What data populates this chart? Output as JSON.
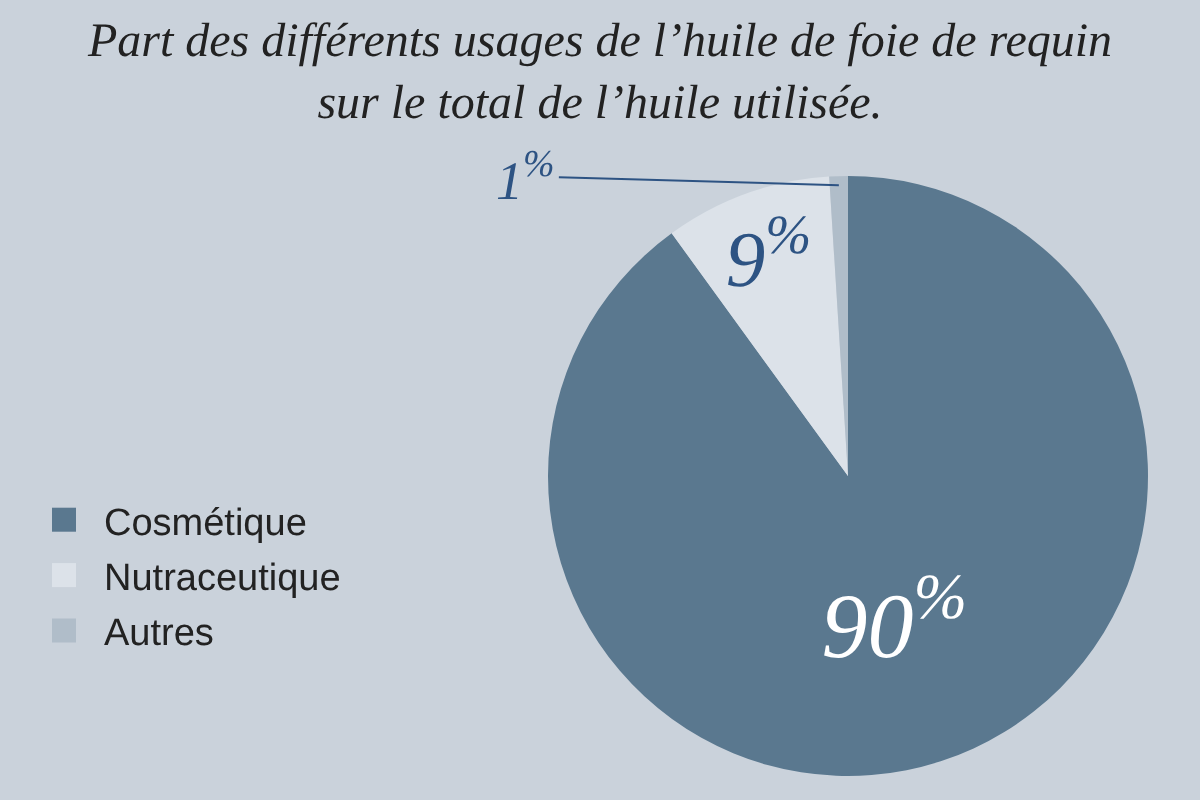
{
  "chart_data": {
    "type": "pie",
    "title": "Part des différents usages de l’huile de foie de requin sur le total de l’huile utilisée.",
    "categories": [
      "Cosmétique",
      "Nutraceutique",
      "Autres"
    ],
    "values": [
      90,
      9,
      1
    ],
    "colors": [
      "#5a788f",
      "#dce2e9",
      "#b0bdc9"
    ],
    "value_labels": [
      "90$^{%}$",
      "9$^{%}$",
      "1$^{%}$"
    ],
    "legend": "left"
  }
}
